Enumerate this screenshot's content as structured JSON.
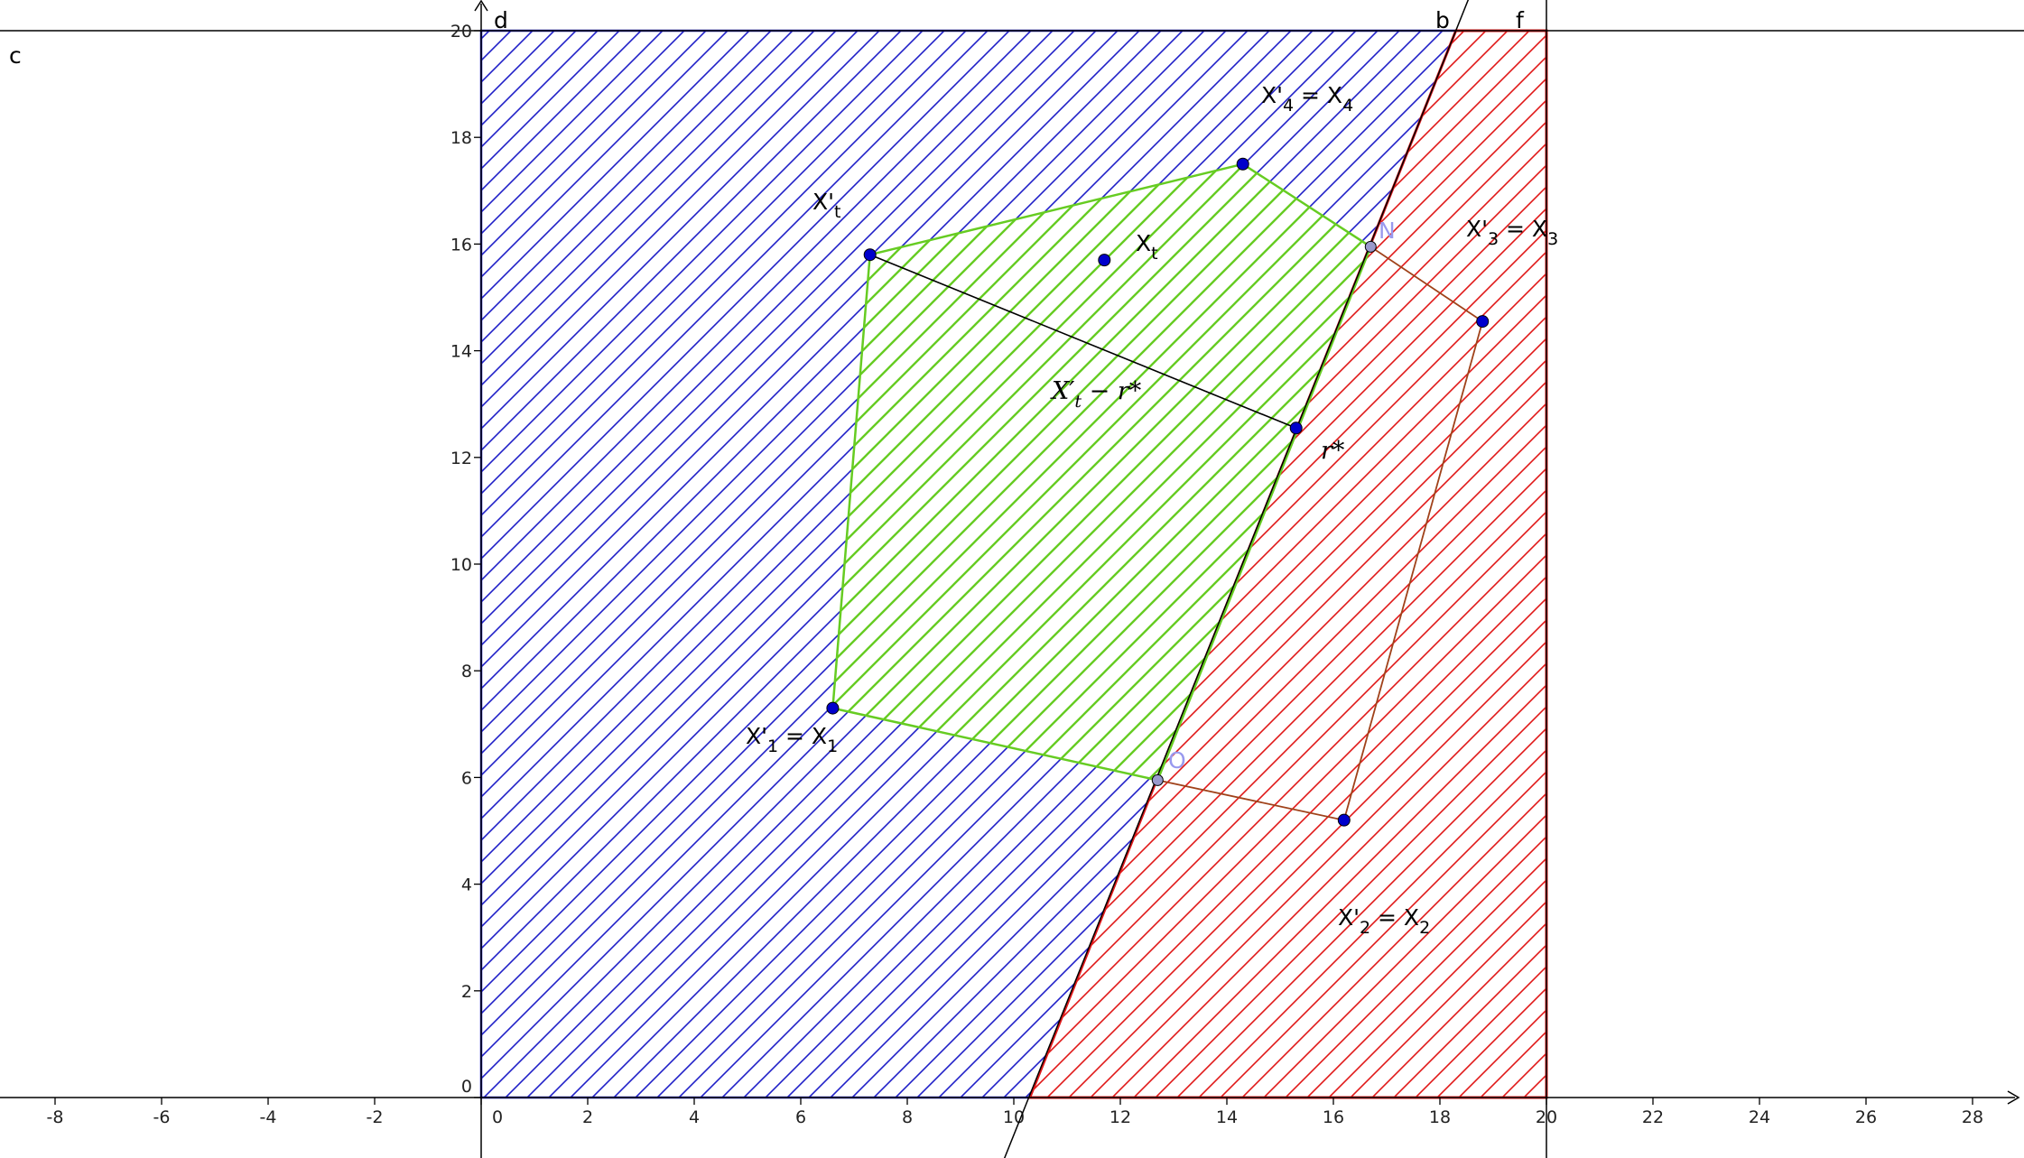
{
  "colors": {
    "blue": "#2020c8",
    "red": "#e01818",
    "green": "#66cc22",
    "brown": "#a0421a",
    "point": "#0000cc",
    "light_point": "#9999cc"
  },
  "chart_data": {
    "type": "geometry",
    "x_range": [
      -9,
      29
    ],
    "y_range": [
      -1.1,
      20.6
    ],
    "x_ticks": [
      "-8",
      "-6",
      "-4",
      "-2",
      "0",
      "2",
      "4",
      "6",
      "8",
      "10",
      "12",
      "14",
      "16",
      "18",
      "20",
      "22",
      "24",
      "26",
      "28"
    ],
    "y_ticks": [
      "0",
      "2",
      "4",
      "6",
      "8",
      "10",
      "12",
      "14",
      "16",
      "18",
      "20"
    ],
    "regions": [
      {
        "name": "blue-region",
        "polygon": [
          [
            0,
            0
          ],
          [
            0,
            20
          ],
          [
            18.3,
            20
          ],
          [
            10.3,
            0
          ]
        ]
      },
      {
        "name": "red-region",
        "polygon": [
          [
            10.3,
            0
          ],
          [
            18.3,
            20
          ],
          [
            20,
            20
          ],
          [
            20,
            0
          ]
        ]
      },
      {
        "name": "green-polygon",
        "polygon": [
          [
            7.3,
            15.8
          ],
          [
            14.3,
            17.5
          ],
          [
            16.7,
            15.95
          ],
          [
            12.7,
            5.95
          ],
          [
            6.6,
            7.3
          ]
        ]
      }
    ],
    "brown_path": [
      [
        12.7,
        5.95
      ],
      [
        16.2,
        5.2
      ],
      [
        18.8,
        14.55
      ],
      [
        16.7,
        15.95
      ]
    ],
    "segment": [
      [
        7.3,
        15.8
      ],
      [
        15.3,
        12.55
      ]
    ],
    "line_b": [
      [
        9.8,
        -1.2
      ],
      [
        18.7,
        21
      ]
    ],
    "points": [
      {
        "name": "X'1",
        "x": 6.6,
        "y": 7.3
      },
      {
        "name": "X'2",
        "x": 16.2,
        "y": 5.2
      },
      {
        "name": "X'3",
        "x": 18.8,
        "y": 14.55
      },
      {
        "name": "X'4",
        "x": 14.3,
        "y": 17.5
      },
      {
        "name": "X't",
        "x": 7.3,
        "y": 15.8
      },
      {
        "name": "Xt",
        "x": 11.7,
        "y": 15.7
      },
      {
        "name": "r*",
        "x": 15.3,
        "y": 12.55
      },
      {
        "name": "N",
        "x": 16.7,
        "y": 15.95,
        "light": true
      },
      {
        "name": "O",
        "x": 12.7,
        "y": 5.95,
        "light": true
      }
    ]
  },
  "labels": {
    "c": "c",
    "d": "d",
    "b": "b",
    "f": "f",
    "N": "N",
    "O": "O",
    "x1": {
      "main": "X'",
      "sub1": "1",
      "mid": " = X",
      "sub2": "1"
    },
    "x2": {
      "main": "X'",
      "sub1": "2",
      "mid": " = X",
      "sub2": "2"
    },
    "x3": {
      "main": "X'",
      "sub1": "3",
      "mid": " = X",
      "sub2": "3"
    },
    "x4": {
      "main": "X'",
      "sub1": "4",
      "mid": " = X",
      "sub2": "4"
    },
    "xpt": {
      "main": "X'",
      "sub": "t"
    },
    "xt": {
      "main": "X",
      "sub": "t"
    },
    "formula": {
      "a": "X′",
      "sub": "t",
      "b": " − r*"
    },
    "rstar": "r*"
  }
}
